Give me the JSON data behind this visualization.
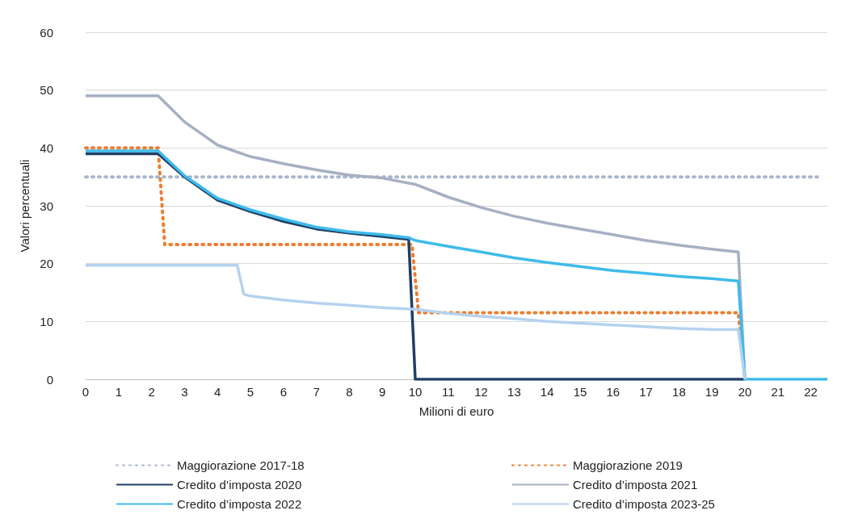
{
  "chart_data": {
    "type": "line",
    "xlabel": "Milioni di euro",
    "ylabel": "Valori percentuali",
    "xlim": [
      0,
      22.5
    ],
    "xticks": [
      0,
      1,
      2,
      3,
      4,
      5,
      6,
      7,
      8,
      9,
      10,
      11,
      12,
      13,
      14,
      15,
      16,
      17,
      18,
      19,
      20,
      21,
      22
    ],
    "ylim": [
      0,
      60
    ],
    "yticks": [
      0,
      10,
      20,
      30,
      40,
      50,
      60
    ],
    "grid": "y",
    "legend": "bottom",
    "marker": "none",
    "series": [
      {
        "name": "Maggiorazione 2017-18",
        "color": "#a9b6cc",
        "line_style": "dotted",
        "x": [
          0,
          22.2
        ],
        "values": [
          35,
          35
        ]
      },
      {
        "name": "Maggiorazione 2019",
        "color": "#ed7d31",
        "line_style": "dotted",
        "x": [
          0,
          2.2,
          2.4,
          9.9,
          10.1,
          19.8,
          20
        ],
        "values": [
          40,
          40,
          23.3,
          23.3,
          11.5,
          11.5,
          0
        ]
      },
      {
        "name": "Credito d’imposta 2020",
        "color": "#1f3f66",
        "line_style": "solid",
        "x": [
          0,
          2.2,
          3,
          4,
          5,
          6,
          7,
          8,
          9,
          9.8,
          10,
          20
        ],
        "values": [
          39,
          39,
          35,
          31,
          29,
          27.3,
          26,
          25.3,
          24.7,
          24.2,
          0,
          0
        ]
      },
      {
        "name": "Credito d’imposta 2021",
        "color": "#a6b0c3",
        "line_style": "solid",
        "x": [
          0,
          2.2,
          3,
          4,
          5,
          6,
          7,
          8,
          9,
          10,
          11,
          12,
          13,
          14,
          15,
          16,
          17,
          18,
          19,
          19.8,
          20
        ],
        "values": [
          49,
          49,
          44.5,
          40.5,
          38.5,
          37.3,
          36.2,
          35.3,
          34.8,
          33.7,
          31.5,
          29.7,
          28.2,
          27,
          26,
          25,
          24,
          23.2,
          22.5,
          22,
          0
        ]
      },
      {
        "name": "Credito d’imposta 2022",
        "color": "#3ebbea",
        "line_style": "solid",
        "x": [
          0,
          2.2,
          3,
          4,
          5,
          6,
          7,
          8,
          9,
          9.8,
          10,
          11,
          12,
          13,
          14,
          15,
          16,
          17,
          18,
          19,
          19.8,
          20,
          22.5
        ],
        "values": [
          39.5,
          39.5,
          35.2,
          31.3,
          29.3,
          27.7,
          26.3,
          25.5,
          25,
          24.5,
          24,
          23,
          22,
          21,
          20.2,
          19.5,
          18.8,
          18.3,
          17.8,
          17.4,
          17,
          0,
          0
        ]
      },
      {
        "name": "Credito d’imposta 2023-25",
        "color": "#b4d3ee",
        "line_style": "solid",
        "x": [
          0,
          4.6,
          4.8,
          5,
          6,
          7,
          8,
          9,
          10,
          11,
          12,
          13,
          14,
          15,
          16,
          17,
          18,
          19,
          19.8,
          20
        ],
        "values": [
          19.7,
          19.7,
          14.7,
          14.4,
          13.7,
          13.2,
          12.8,
          12.4,
          12.1,
          11.4,
          10.9,
          10.5,
          10,
          9.7,
          9.4,
          9.1,
          8.8,
          8.6,
          8.6,
          0
        ]
      }
    ]
  }
}
